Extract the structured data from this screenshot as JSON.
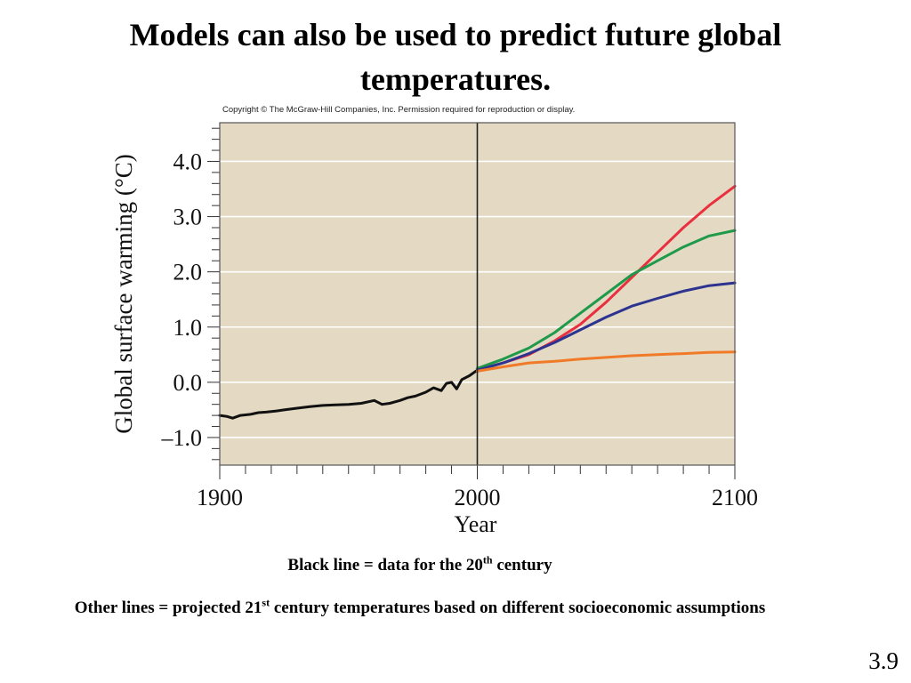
{
  "slide": {
    "title": "Models can also be used to predict future global temperatures.",
    "copyright": "Copyright © The McGraw-Hill Companies, Inc. Permission required for reproduction or display.",
    "caption1_pre": "Black line = data for the 20",
    "caption1_sup": "th",
    "caption1_post": " century",
    "caption2_pre": "Other lines = projected 21",
    "caption2_sup": "st",
    "caption2_post": " century temperatures based on different socioeconomic assumptions",
    "slide_number": "3.9"
  },
  "chart_data": {
    "type": "line",
    "xlabel": "Year",
    "ylabel": "Global surface warming (°C)",
    "xlim": [
      1900,
      2100
    ],
    "ylim": [
      -1.5,
      4.7
    ],
    "x_ticks": [
      1900,
      2000,
      2100
    ],
    "y_ticks": [
      {
        "value": -1.0,
        "label": "–1.0"
      },
      {
        "value": 0.0,
        "label": "0.0"
      },
      {
        "value": 1.0,
        "label": "1.0"
      },
      {
        "value": 2.0,
        "label": "2.0"
      },
      {
        "value": 3.0,
        "label": "3.0"
      },
      {
        "value": 4.0,
        "label": "4.0"
      }
    ],
    "grid": true,
    "plot_background": "#e4d9c3",
    "vertical_marker_x": 2000,
    "series": [
      {
        "color": "#111111",
        "x": [
          1900,
          1903,
          1905,
          1908,
          1912,
          1915,
          1918,
          1922,
          1925,
          1930,
          1935,
          1940,
          1945,
          1950,
          1955,
          1960,
          1963,
          1966,
          1970,
          1973,
          1976,
          1980,
          1983,
          1986,
          1988,
          1990,
          1992,
          1994,
          1997,
          2000
        ],
        "values": [
          -0.6,
          -0.62,
          -0.65,
          -0.6,
          -0.58,
          -0.55,
          -0.54,
          -0.52,
          -0.5,
          -0.47,
          -0.44,
          -0.42,
          -0.41,
          -0.4,
          -0.38,
          -0.33,
          -0.4,
          -0.38,
          -0.33,
          -0.28,
          -0.25,
          -0.18,
          -0.1,
          -0.15,
          -0.02,
          0.0,
          -0.12,
          0.05,
          0.12,
          0.22
        ]
      },
      {
        "color": "#e8303f",
        "x": [
          2000,
          2010,
          2020,
          2030,
          2040,
          2050,
          2060,
          2070,
          2080,
          2090,
          2100
        ],
        "values": [
          0.22,
          0.35,
          0.5,
          0.75,
          1.05,
          1.45,
          1.9,
          2.35,
          2.8,
          3.2,
          3.55
        ]
      },
      {
        "color": "#1e9a4a",
        "x": [
          2000,
          2010,
          2020,
          2030,
          2040,
          2050,
          2060,
          2070,
          2080,
          2090,
          2100
        ],
        "values": [
          0.25,
          0.42,
          0.62,
          0.9,
          1.25,
          1.6,
          1.95,
          2.2,
          2.45,
          2.65,
          2.75
        ]
      },
      {
        "color": "#2d3490",
        "x": [
          2000,
          2010,
          2020,
          2030,
          2040,
          2050,
          2060,
          2070,
          2080,
          2090,
          2100
        ],
        "values": [
          0.22,
          0.35,
          0.52,
          0.72,
          0.95,
          1.18,
          1.38,
          1.52,
          1.65,
          1.75,
          1.8
        ]
      },
      {
        "color": "#f07a28",
        "x": [
          2000,
          2010,
          2020,
          2030,
          2040,
          2050,
          2060,
          2070,
          2080,
          2090,
          2100
        ],
        "values": [
          0.2,
          0.28,
          0.35,
          0.38,
          0.42,
          0.45,
          0.48,
          0.5,
          0.52,
          0.54,
          0.55
        ]
      }
    ]
  }
}
